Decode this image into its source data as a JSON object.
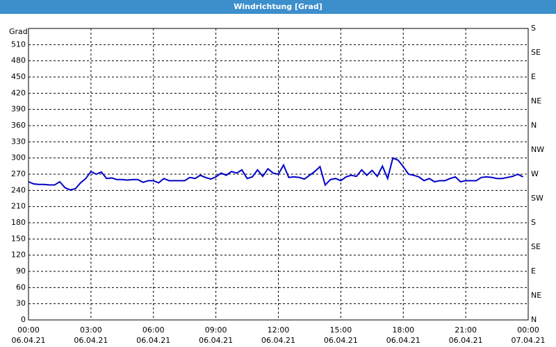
{
  "chart_data": {
    "type": "line",
    "title": "Windrichtung [Grad]",
    "y_label": "Grad",
    "x": [
      0,
      0.25,
      0.5,
      0.75,
      1,
      1.25,
      1.5,
      1.75,
      2,
      2.25,
      2.5,
      2.75,
      3,
      3.25,
      3.5,
      3.75,
      4,
      4.25,
      4.5,
      4.75,
      5,
      5.25,
      5.5,
      5.75,
      6,
      6.25,
      6.5,
      6.75,
      7,
      7.25,
      7.5,
      7.75,
      8,
      8.25,
      8.5,
      8.75,
      9,
      9.25,
      9.5,
      9.75,
      10,
      10.25,
      10.5,
      10.75,
      11,
      11.25,
      11.5,
      11.75,
      12,
      12.25,
      12.5,
      12.75,
      13,
      13.25,
      13.5,
      13.75,
      14,
      14.25,
      14.5,
      14.75,
      15,
      15.25,
      15.5,
      15.75,
      16,
      16.25,
      16.5,
      16.75,
      17,
      17.25,
      17.5,
      17.75,
      18,
      18.25,
      18.5,
      18.75,
      19,
      19.25,
      19.5,
      19.75,
      20,
      20.25,
      20.5,
      20.75,
      21,
      21.25,
      21.5,
      21.75,
      22,
      22.25,
      22.5,
      22.75,
      23,
      23.25,
      23.5,
      23.75
    ],
    "series": [
      {
        "color": "#0000c8",
        "values": [
          256,
          252,
          251,
          251,
          250,
          250,
          256,
          245,
          241,
          243,
          254,
          262,
          275,
          270,
          274,
          262,
          263,
          260,
          260,
          259,
          260,
          260,
          255,
          258,
          258,
          254,
          262,
          258,
          258,
          258,
          258,
          264,
          262,
          268,
          264,
          261,
          265,
          272,
          268,
          275,
          272,
          278,
          262,
          265,
          278,
          266,
          280,
          272,
          270,
          287,
          264,
          265,
          264,
          261,
          268,
          275,
          284,
          250,
          260,
          262,
          258,
          265,
          268,
          266,
          278,
          268,
          277,
          266,
          285,
          262,
          300,
          296,
          284,
          270,
          268,
          265,
          258,
          262,
          256,
          258,
          258,
          262,
          265,
          256,
          258,
          258,
          258,
          264,
          265,
          264,
          262,
          262,
          264,
          266,
          270,
          265
        ]
      }
    ],
    "xlim": [
      0,
      24
    ],
    "ylim": [
      0,
      540
    ],
    "y2lim": [
      0,
      540
    ],
    "xticks": [
      {
        "value": 0,
        "label": "00:00",
        "date": "06.04.21"
      },
      {
        "value": 3,
        "label": "03:00",
        "date": "06.04.21"
      },
      {
        "value": 6,
        "label": "06:00",
        "date": "06.04.21"
      },
      {
        "value": 9,
        "label": "09:00",
        "date": "06.04.21"
      },
      {
        "value": 12,
        "label": "12:00",
        "date": "06.04.21"
      },
      {
        "value": 15,
        "label": "15:00",
        "date": "06.04.21"
      },
      {
        "value": 18,
        "label": "18:00",
        "date": "06.04.21"
      },
      {
        "value": 21,
        "label": "21:00",
        "date": "06.04.21"
      },
      {
        "value": 24,
        "label": "00:00",
        "date": "07.04.21"
      }
    ],
    "yticks": [
      0,
      30,
      60,
      90,
      120,
      150,
      180,
      210,
      240,
      270,
      300,
      330,
      360,
      390,
      420,
      450,
      480,
      510
    ],
    "y2ticks": [
      {
        "value": 0,
        "label": "N"
      },
      {
        "value": 45,
        "label": "NE"
      },
      {
        "value": 90,
        "label": "E"
      },
      {
        "value": 135,
        "label": "SE"
      },
      {
        "value": 180,
        "label": "S"
      },
      {
        "value": 225,
        "label": "SW"
      },
      {
        "value": 270,
        "label": "W"
      },
      {
        "value": 315,
        "label": "NW"
      },
      {
        "value": 360,
        "label": "N"
      },
      {
        "value": 405,
        "label": "NE"
      },
      {
        "value": 450,
        "label": "E"
      },
      {
        "value": 495,
        "label": "SE"
      },
      {
        "value": 540,
        "label": "S"
      }
    ],
    "grid": true
  }
}
